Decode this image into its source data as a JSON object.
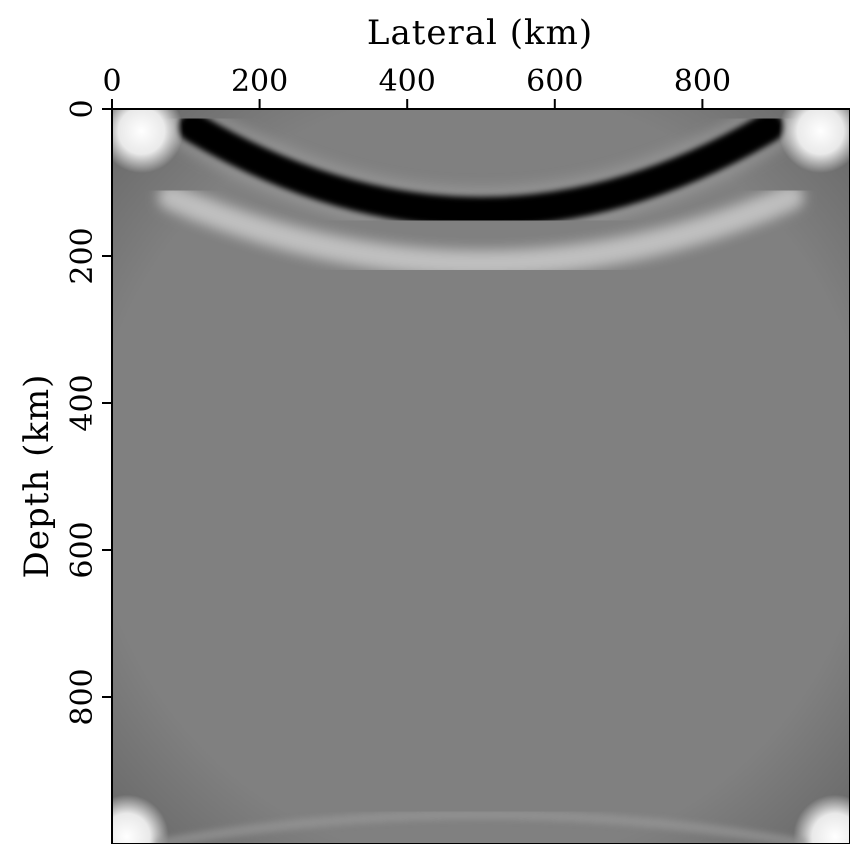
{
  "chart_data": {
    "type": "heatmap",
    "colormap": "grayscale",
    "xlabel": "Lateral (km)",
    "ylabel": "Depth (km)",
    "x_axis_position": "top",
    "y_axis_direction": "down",
    "xlim": [
      0,
      1000
    ],
    "ylim": [
      0,
      1000
    ],
    "x_ticks": [
      {
        "value": 0,
        "label": "0"
      },
      {
        "value": 200,
        "label": "200"
      },
      {
        "value": 400,
        "label": "400"
      },
      {
        "value": 600,
        "label": "600"
      },
      {
        "value": 800,
        "label": "800"
      }
    ],
    "y_ticks": [
      {
        "value": 0,
        "label": "0"
      },
      {
        "value": 200,
        "label": "200"
      },
      {
        "value": 400,
        "label": "400"
      },
      {
        "value": 600,
        "label": "600"
      },
      {
        "value": 800,
        "label": "800"
      }
    ],
    "grid": false,
    "colors": {
      "background": "#808080",
      "dark_event": "#050505",
      "bright_event": "#f4f4f4",
      "frame": "#000000"
    },
    "features": [
      {
        "kind": "dark-arc",
        "x_range": [
          110,
          890
        ],
        "depth_at_edges": 25,
        "depth_at_center": 140
      },
      {
        "kind": "bright-arc",
        "x_range": [
          80,
          920
        ],
        "depth_at_edges": 120,
        "depth_at_center": 210
      },
      {
        "kind": "bright-corner-spots",
        "positions": [
          [
            40,
            30
          ],
          [
            960,
            30
          ],
          [
            20,
            990
          ],
          [
            980,
            990
          ]
        ]
      },
      {
        "kind": "faint-bottom-arc",
        "x_range": [
          60,
          940
        ],
        "depth_at_center": 960
      }
    ]
  }
}
